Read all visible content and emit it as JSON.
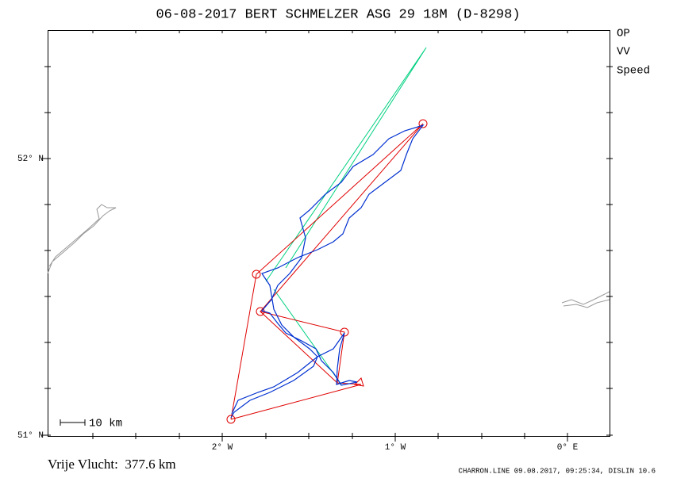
{
  "header": {
    "title": "06-08-2017   BERT SCHMELZER   ASG 29 18M (D-8298)"
  },
  "legend": {
    "items": [
      {
        "label": "OP",
        "color": "#00d080"
      },
      {
        "label": "VV",
        "color": "#e00000"
      },
      {
        "label": "Speed",
        "color": "#0040e0"
      }
    ]
  },
  "axes": {
    "y_labels": [
      "52° N",
      "51° N"
    ],
    "x_labels": [
      "2° W",
      "1° W",
      "0° E"
    ]
  },
  "scale_bar": {
    "label": "10 km"
  },
  "footer": {
    "distance": "Vrije Vlucht:  377.6 km",
    "credit": "CHARRON.LINE 09.08.2017, 09:25:34, DISLIN 10.6"
  }
}
